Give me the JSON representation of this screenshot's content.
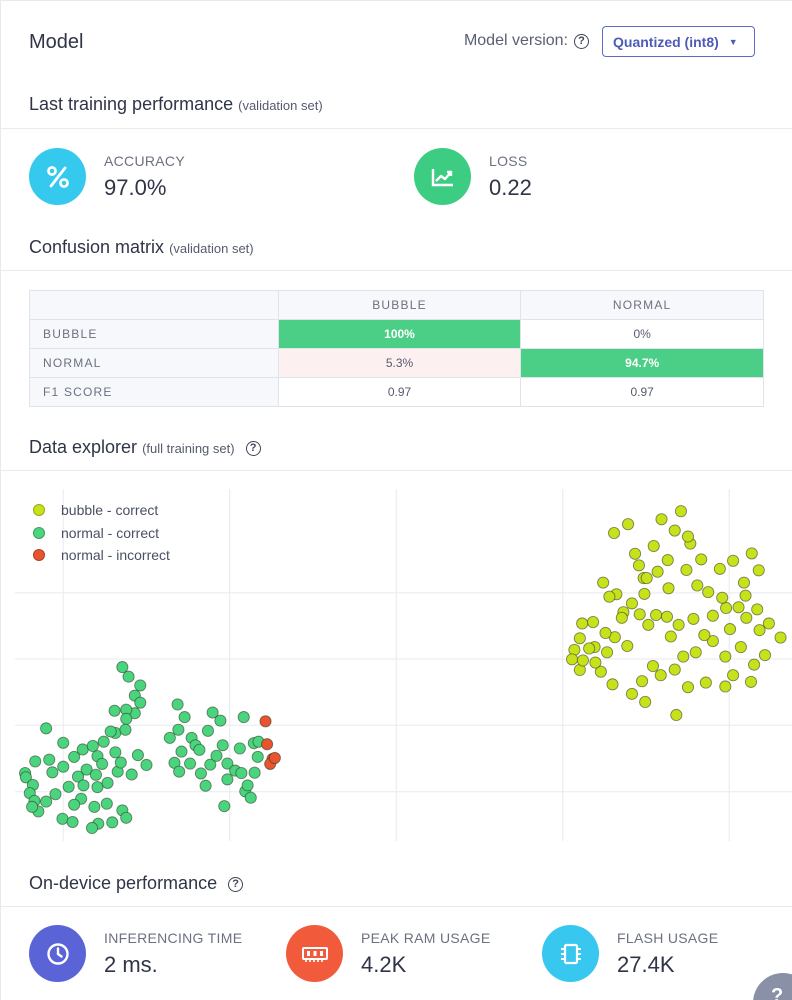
{
  "header": {
    "title": "Model",
    "version_label": "Model version:",
    "version_value": "Quantized (int8)"
  },
  "training": {
    "title": "Last training performance",
    "subtitle": "(validation set)",
    "accuracy": {
      "label": "ACCURACY",
      "value": "97.0%",
      "icon": "percent-icon",
      "color": "#35c9ee"
    },
    "loss": {
      "label": "LOSS",
      "value": "0.22",
      "icon": "chart-line-icon",
      "color": "#3dcd82"
    }
  },
  "confusion": {
    "title": "Confusion matrix",
    "subtitle": "(validation set)",
    "columns": [
      "BUBBLE",
      "NORMAL"
    ],
    "rows": [
      {
        "label": "BUBBLE",
        "cells": [
          "100%",
          "0%"
        ]
      },
      {
        "label": "NORMAL",
        "cells": [
          "5.3%",
          "94.7%"
        ]
      },
      {
        "label": "F1 SCORE",
        "cells": [
          "0.97",
          "0.97"
        ]
      }
    ]
  },
  "explorer": {
    "title": "Data explorer",
    "subtitle": "(full training set)",
    "legend": [
      {
        "label": "bubble - correct",
        "color": "#c7e21b"
      },
      {
        "label": "normal - correct",
        "color": "#4bd47e"
      },
      {
        "label": "normal - incorrect",
        "color": "#e8542e"
      }
    ]
  },
  "chart_data": {
    "type": "scatter",
    "title": "Data explorer",
    "xlabel": "",
    "ylabel": "",
    "grid": true,
    "legend_position": "top-left",
    "xlim": [
      0,
      100
    ],
    "ylim": [
      0,
      100
    ],
    "series": [
      {
        "name": "bubble - correct",
        "color": "#c7e21b",
        "points": [
          [
            78.8,
            90
          ],
          [
            77.0,
            87.5
          ],
          [
            79.7,
            81.6
          ],
          [
            80.8,
            74.7
          ],
          [
            81.2,
            74.7
          ],
          [
            80.9,
            70.2
          ],
          [
            82.4,
            64.2
          ],
          [
            81.4,
            61.4
          ],
          [
            80.3,
            64.4
          ],
          [
            79.3,
            67.5
          ],
          [
            78.2,
            65.0
          ],
          [
            77.3,
            70.1
          ],
          [
            75.6,
            73.4
          ],
          [
            76.4,
            69.4
          ],
          [
            78.0,
            63.4
          ],
          [
            77.1,
            57.9
          ],
          [
            75.9,
            59.1
          ],
          [
            74.3,
            62.2
          ],
          [
            74.5,
            55.1
          ],
          [
            72.9,
            61.8
          ],
          [
            72.6,
            57.6
          ],
          [
            71.9,
            54.3
          ],
          [
            71.6,
            51.6
          ],
          [
            72.6,
            48.6
          ],
          [
            73.8,
            54.7
          ],
          [
            75.3,
            48.1
          ],
          [
            76.8,
            44.5
          ],
          [
            79.3,
            41.8
          ],
          [
            81.0,
            39.5
          ],
          [
            80.6,
            45.4
          ],
          [
            83.0,
            47.1
          ],
          [
            82.0,
            49.7
          ],
          [
            84.8,
            48.7
          ],
          [
            86.5,
            43.7
          ],
          [
            88.8,
            45.0
          ],
          [
            85.9,
            52.4
          ],
          [
            87.5,
            53.6
          ],
          [
            89.7,
            56.8
          ],
          [
            91.3,
            52.4
          ],
          [
            92.3,
            47.1
          ],
          [
            94.6,
            45.2
          ],
          [
            95.0,
            50.1
          ],
          [
            96.4,
            52.8
          ],
          [
            93.3,
            55.1
          ],
          [
            91.9,
            60.2
          ],
          [
            94.0,
            63.4
          ],
          [
            91.4,
            66.2
          ],
          [
            93.7,
            73.4
          ],
          [
            95.6,
            76.9
          ],
          [
            94.7,
            81.7
          ],
          [
            92.3,
            79.6
          ],
          [
            90.6,
            77.3
          ],
          [
            88.2,
            80.0
          ],
          [
            86.8,
            84.5
          ],
          [
            84.8,
            88.2
          ],
          [
            83.1,
            91.4
          ],
          [
            85.6,
            93.7
          ],
          [
            86.5,
            86.5
          ],
          [
            83.9,
            79.8
          ],
          [
            82.6,
            76.5
          ],
          [
            84.0,
            71.8
          ],
          [
            87.7,
            72.6
          ],
          [
            90.9,
            69.1
          ],
          [
            93.0,
            66.4
          ],
          [
            95.4,
            65.8
          ],
          [
            89.7,
            64.0
          ],
          [
            87.2,
            63.1
          ],
          [
            85.3,
            61.4
          ],
          [
            88.6,
            58.5
          ],
          [
            96.9,
            61.8
          ],
          [
            98.4,
            57.8
          ],
          [
            95.7,
            59.9
          ],
          [
            83.8,
            63.7
          ],
          [
            86.3,
            77.0
          ],
          [
            89.1,
            70.7
          ],
          [
            93.9,
            69.7
          ],
          [
            80.2,
            78.3
          ],
          [
            82.1,
            83.8
          ],
          [
            84.3,
            58.1
          ],
          [
            91.3,
            43.9
          ],
          [
            85.0,
            35.8
          ],
          [
            73.0,
            51.3
          ],
          [
            74.6,
            50.7
          ],
          [
            76.1,
            53.6
          ],
          [
            78.7,
            55.4
          ]
        ]
      },
      {
        "name": "normal - correct",
        "color": "#4bd47e",
        "points": [
          [
            13.8,
            49.4
          ],
          [
            14.6,
            46.7
          ],
          [
            16.1,
            44.2
          ],
          [
            15.4,
            41.3
          ],
          [
            16.1,
            39.3
          ],
          [
            15.4,
            36.3
          ],
          [
            14.3,
            37.3
          ],
          [
            12.8,
            37.0
          ],
          [
            14.3,
            34.7
          ],
          [
            19.9,
            29.3
          ],
          [
            21.0,
            31.6
          ],
          [
            22.7,
            29.3
          ],
          [
            24.8,
            31.3
          ],
          [
            23.2,
            27.2
          ],
          [
            23.7,
            25.9
          ],
          [
            22.5,
            22.0
          ],
          [
            21.4,
            25.4
          ],
          [
            20.5,
            22.2
          ],
          [
            21.1,
            19.7
          ],
          [
            23.9,
            19.2
          ],
          [
            25.1,
            21.7
          ],
          [
            25.9,
            24.2
          ],
          [
            27.3,
            22.0
          ],
          [
            28.3,
            20.0
          ],
          [
            27.3,
            17.5
          ],
          [
            29.6,
            14.1
          ],
          [
            29.1,
            19.3
          ],
          [
            28.9,
            26.3
          ],
          [
            26.7,
            27.2
          ],
          [
            24.5,
            15.7
          ],
          [
            26.9,
            9.9
          ],
          [
            30.3,
            12.3
          ],
          [
            29.9,
            15.8
          ],
          [
            30.8,
            19.4
          ],
          [
            31.2,
            23.9
          ],
          [
            30.7,
            27.8
          ],
          [
            4.0,
            32.0
          ],
          [
            6.2,
            27.9
          ],
          [
            4.4,
            23.1
          ],
          [
            6.2,
            21.1
          ],
          [
            4.8,
            19.5
          ],
          [
            2.6,
            22.6
          ],
          [
            1.3,
            19.3
          ],
          [
            1.4,
            18.1
          ],
          [
            2.3,
            15.9
          ],
          [
            1.9,
            13.6
          ],
          [
            2.5,
            11.4
          ],
          [
            4.0,
            11.2
          ],
          [
            5.2,
            13.3
          ],
          [
            6.9,
            15.4
          ],
          [
            8.1,
            18.3
          ],
          [
            9.2,
            20.3
          ],
          [
            7.6,
            23.9
          ],
          [
            8.7,
            26.0
          ],
          [
            10.0,
            27.0
          ],
          [
            10.6,
            24.1
          ],
          [
            11.2,
            21.9
          ],
          [
            10.4,
            18.8
          ],
          [
            10.6,
            15.3
          ],
          [
            11.9,
            16.5
          ],
          [
            13.2,
            19.7
          ],
          [
            13.6,
            22.3
          ],
          [
            12.9,
            25.2
          ],
          [
            11.4,
            28.2
          ],
          [
            12.9,
            30.7
          ],
          [
            14.2,
            31.6
          ],
          [
            15.8,
            24.4
          ],
          [
            16.9,
            21.6
          ],
          [
            15.0,
            18.9
          ],
          [
            8.5,
            12.0
          ],
          [
            7.6,
            10.3
          ],
          [
            10.2,
            9.7
          ],
          [
            11.8,
            10.6
          ],
          [
            13.8,
            8.7
          ],
          [
            14.3,
            6.6
          ],
          [
            12.5,
            5.3
          ],
          [
            10.7,
            4.9
          ],
          [
            9.9,
            3.7
          ],
          [
            6.1,
            6.3
          ],
          [
            3.0,
            8.4
          ],
          [
            2.2,
            9.7
          ],
          [
            8.8,
            15.8
          ],
          [
            12.3,
            31.1
          ],
          [
            7.4,
            5.4
          ],
          [
            20.9,
            38.8
          ],
          [
            21.8,
            35.2
          ],
          [
            25.4,
            36.5
          ],
          [
            26.4,
            34.2
          ],
          [
            29.4,
            35.2
          ],
          [
            31.3,
            28.2
          ]
        ]
      },
      {
        "name": "normal - incorrect",
        "color": "#e8542e",
        "points": [
          [
            32.2,
            34.0
          ],
          [
            32.4,
            27.5
          ],
          [
            33.1,
            23.3
          ],
          [
            32.8,
            21.9
          ],
          [
            33.4,
            23.6
          ]
        ]
      }
    ]
  },
  "ondevice": {
    "title": "On-device performance",
    "items": [
      {
        "label": "INFERENCING TIME",
        "value": "2 ms.",
        "icon": "clock-icon",
        "color": "#5b64d6"
      },
      {
        "label": "PEAK RAM USAGE",
        "value": "4.2K",
        "icon": "memory-icon",
        "color": "#f15a3a"
      },
      {
        "label": "FLASH USAGE",
        "value": "27.4K",
        "icon": "chip-icon",
        "color": "#38c7ee"
      }
    ]
  },
  "help_bubble": {
    "label": "?"
  }
}
